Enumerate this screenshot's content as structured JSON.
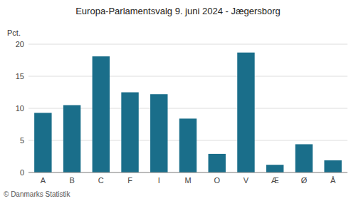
{
  "chart_data": {
    "type": "bar",
    "title": "Europa-Parlamentsvalg 9. juni 2024 - Jægersborg",
    "ylabel": "Pct.",
    "footer": "© Danmarks Statistik",
    "categories": [
      "A",
      "B",
      "C",
      "F",
      "I",
      "M",
      "O",
      "V",
      "Æ",
      "Ø",
      "Å"
    ],
    "values": [
      9.3,
      10.5,
      18.1,
      12.5,
      12.2,
      8.4,
      2.9,
      18.7,
      1.2,
      4.4,
      1.9
    ],
    "color": "#1a6e8a",
    "ylim": [
      0,
      20
    ],
    "yticks": [
      0,
      5,
      10,
      15,
      20
    ],
    "grid": true
  }
}
